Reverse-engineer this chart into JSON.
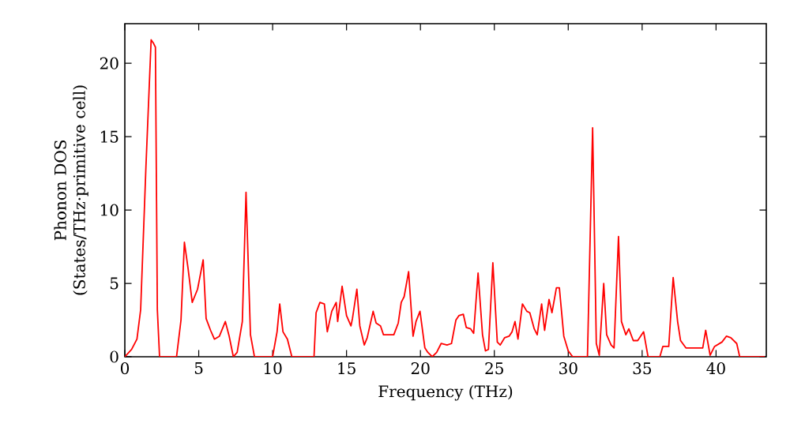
{
  "chart_data": {
    "type": "line",
    "xlabel": "Frequency (THz)",
    "ylabel": "Phonon DOS (States/THz·primitive cell)",
    "xlim": [
      0,
      43.4
    ],
    "ylim": [
      0,
      22.7
    ],
    "xticks": [
      0,
      5,
      10,
      15,
      20,
      25,
      30,
      35,
      40
    ],
    "yticks": [
      0,
      5,
      10,
      15,
      20
    ],
    "grid": false,
    "marker": "none",
    "line_style": "solid",
    "series": [
      {
        "color": "#ff0000",
        "x": [
          0,
          0.46,
          0.82,
          1.07,
          1.43,
          1.78,
          1.92,
          2.07,
          2.2,
          2.35,
          3.5,
          3.8,
          4.03,
          4.28,
          4.56,
          4.92,
          5.3,
          5.5,
          5.8,
          6.06,
          6.4,
          6.8,
          7.06,
          7.34,
          7.6,
          7.95,
          8.2,
          8.5,
          8.77,
          10.0,
          10.3,
          10.48,
          10.7,
          11.0,
          11.3,
          12.8,
          12.94,
          13.2,
          13.5,
          13.7,
          14.0,
          14.3,
          14.4,
          14.7,
          15.0,
          15.3,
          15.4,
          15.7,
          15.9,
          16.2,
          16.4,
          16.8,
          17.0,
          17.3,
          17.5,
          17.9,
          18.2,
          18.5,
          18.7,
          18.9,
          19.2,
          19.5,
          19.7,
          19.97,
          20.3,
          20.5,
          20.8,
          21.1,
          21.4,
          21.8,
          22.1,
          22.4,
          22.6,
          22.9,
          23.1,
          23.4,
          23.6,
          23.9,
          24.2,
          24.4,
          24.6,
          24.9,
          25.2,
          25.4,
          25.7,
          26.0,
          26.2,
          26.4,
          26.6,
          26.9,
          27.2,
          27.4,
          27.7,
          27.9,
          28.2,
          28.4,
          28.7,
          28.9,
          29.2,
          29.4,
          29.7,
          30.0,
          30.3,
          31.3,
          31.65,
          31.9,
          32.1,
          32.4,
          32.6,
          32.9,
          33.1,
          33.4,
          33.6,
          33.9,
          34.1,
          34.4,
          34.7,
          35.1,
          35.4,
          36.2,
          36.4,
          36.8,
          37.1,
          37.4,
          37.6,
          37.96,
          38.4,
          39.1,
          39.3,
          39.6,
          39.9,
          40.4,
          40.7,
          41.0,
          41.4,
          41.6,
          43.3
        ],
        "values": [
          0,
          0.5,
          1.2,
          3.2,
          13.0,
          21.6,
          21.4,
          21.1,
          3.2,
          0,
          0,
          2.5,
          7.8,
          6.0,
          3.7,
          4.6,
          6.6,
          2.6,
          1.8,
          1.2,
          1.4,
          2.4,
          1.4,
          0,
          0.3,
          2.4,
          11.2,
          1.5,
          0,
          0,
          1.7,
          3.6,
          1.7,
          1.2,
          0,
          0,
          3.0,
          3.7,
          3.6,
          1.7,
          3.1,
          3.7,
          2.4,
          4.8,
          2.8,
          2.1,
          2.6,
          4.6,
          2.1,
          0.8,
          1.3,
          3.1,
          2.3,
          2.1,
          1.5,
          1.5,
          1.5,
          2.3,
          3.7,
          4.1,
          5.8,
          1.4,
          2.4,
          3.1,
          0.6,
          0.3,
          0,
          0.3,
          0.9,
          0.8,
          0.9,
          2.5,
          2.8,
          2.9,
          2.0,
          1.9,
          1.6,
          5.7,
          1.5,
          0.4,
          0.5,
          6.4,
          1.0,
          0.8,
          1.3,
          1.4,
          1.7,
          2.4,
          1.2,
          3.6,
          3.1,
          3.0,
          1.9,
          1.5,
          3.6,
          1.8,
          3.9,
          3.0,
          4.7,
          4.7,
          1.4,
          0.4,
          0,
          0,
          15.6,
          0.9,
          0.1,
          5.0,
          1.5,
          0.8,
          0.6,
          8.2,
          2.4,
          1.5,
          1.9,
          1.1,
          1.1,
          1.7,
          0,
          0,
          0.7,
          0.7,
          5.4,
          2.4,
          1.1,
          0.6,
          0.6,
          0.6,
          1.8,
          0.1,
          0.7,
          1.0,
          1.4,
          1.3,
          0.9,
          0,
          0
        ]
      }
    ]
  }
}
